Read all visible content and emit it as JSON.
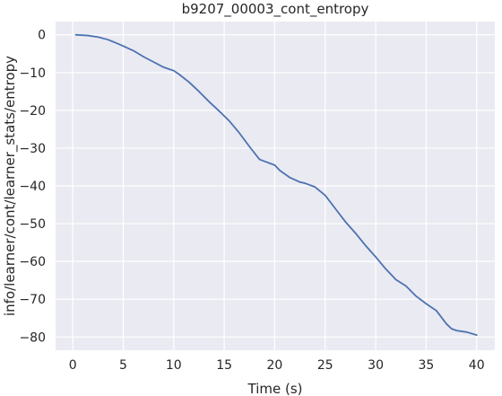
{
  "chart_data": {
    "type": "line",
    "title": "b9207_00003_cont_entropy",
    "xlabel": "Time (s)",
    "ylabel": "info/learner/cont/learner_stats/entropy",
    "xlim": [
      -1.7,
      41.8
    ],
    "ylim": [
      -83.5,
      3.5
    ],
    "xticks": [
      0,
      5,
      10,
      15,
      20,
      25,
      30,
      35,
      40
    ],
    "yticks": [
      0,
      -10,
      -20,
      -30,
      -40,
      -50,
      -60,
      -70,
      -80
    ],
    "grid": true,
    "legend": "none",
    "series": [
      {
        "color": "#4c72b0",
        "x": [
          0.3,
          1.5,
          2.5,
          3.5,
          4.5,
          5.0,
          6.0,
          7.0,
          8.0,
          9.0,
          10.0,
          10.5,
          11.5,
          12.5,
          13.5,
          14.5,
          15.5,
          16.5,
          17.5,
          18.5,
          19.0,
          20.0,
          20.5,
          21.5,
          22.5,
          23.0,
          24.0,
          25.0,
          26.0,
          27.0,
          28.0,
          29.0,
          30.0,
          31.0,
          32.0,
          33.0,
          34.0,
          35.0,
          36.0,
          37.0,
          37.5,
          38.0,
          39.0,
          40.0
        ],
        "y": [
          0.0,
          -0.2,
          -0.6,
          -1.3,
          -2.4,
          -3.0,
          -4.2,
          -5.8,
          -7.2,
          -8.6,
          -9.5,
          -10.4,
          -12.5,
          -15.0,
          -17.7,
          -20.2,
          -22.8,
          -26.0,
          -29.6,
          -33.0,
          -33.5,
          -34.5,
          -35.9,
          -37.8,
          -39.0,
          -39.3,
          -40.3,
          -42.5,
          -46.0,
          -49.5,
          -52.5,
          -55.8,
          -58.8,
          -62.0,
          -64.8,
          -66.5,
          -69.2,
          -71.2,
          -73.0,
          -76.5,
          -77.8,
          -78.3,
          -78.7,
          -79.5
        ]
      }
    ]
  }
}
